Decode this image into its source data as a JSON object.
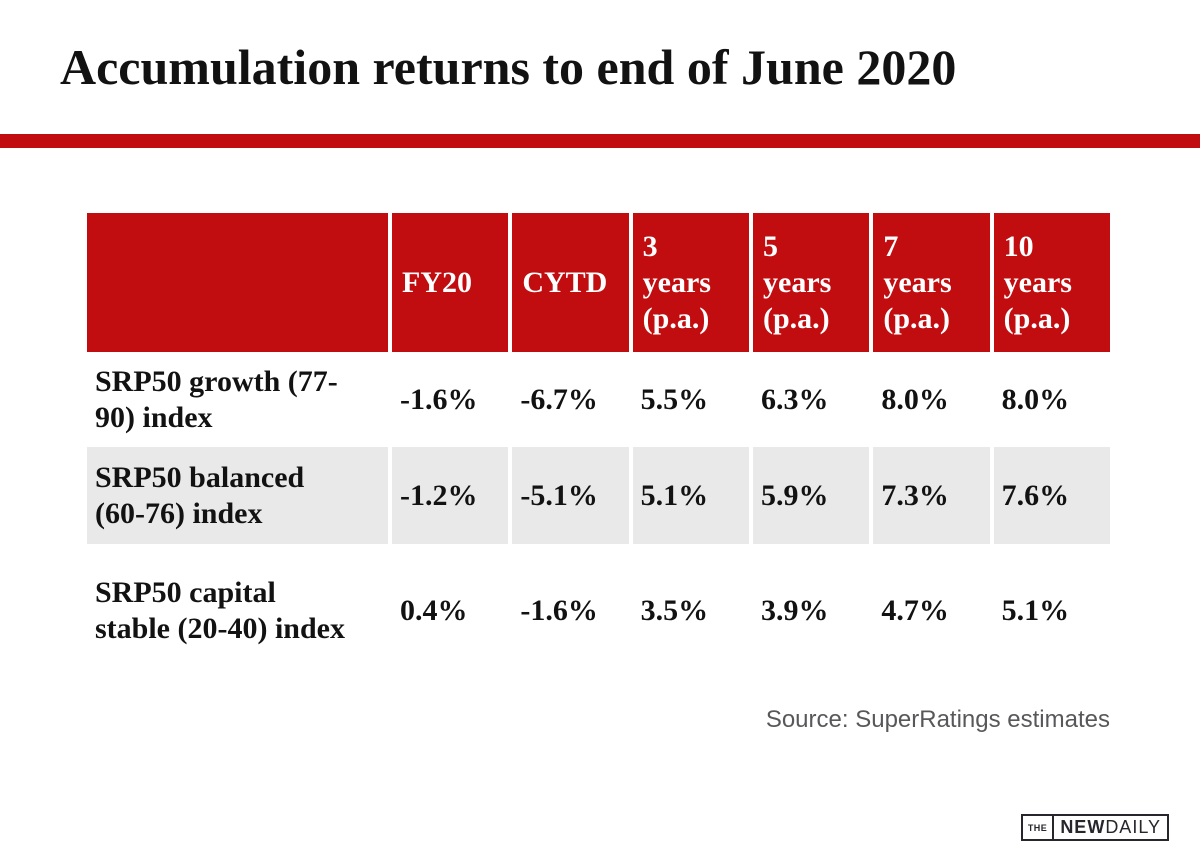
{
  "page": {
    "title": "Accumulation returns to end of June 2020",
    "source": "Source: SuperRatings estimates"
  },
  "chart_data": {
    "type": "table",
    "title": "Accumulation returns to end of June 2020",
    "columns": [
      "FY20",
      "CYTD",
      "3\nyears\n(p.a.)",
      "5\nyears\n(p.a.)",
      "7\nyears\n(p.a.)",
      "10\nyears\n(p.a.)"
    ],
    "rows": [
      {
        "label": "SRP50 growth (77-90) index",
        "values": [
          "-1.6%",
          "-6.7%",
          "5.5%",
          "6.3%",
          "8.0%",
          "8.0%"
        ]
      },
      {
        "label": "SRP50 balanced (60-76) index",
        "values": [
          "-1.2%",
          "-5.1%",
          "5.1%",
          "5.9%",
          "7.3%",
          "7.6%"
        ]
      },
      {
        "label": "SRP50 capital stable (20-40) index",
        "values": [
          "0.4%",
          "-1.6%",
          "3.5%",
          "3.9%",
          "4.7%",
          "5.1%"
        ]
      }
    ],
    "source": "Source: SuperRatings estimates"
  },
  "logo": {
    "the": "THE",
    "new": "NEW",
    "daily": "DAILY"
  },
  "colors": {
    "brand_red": "#c20d10",
    "alt_row_bg": "#e9e9e9",
    "text": "#121212",
    "source_text": "#58585a",
    "logo_ink": "#26262c"
  }
}
